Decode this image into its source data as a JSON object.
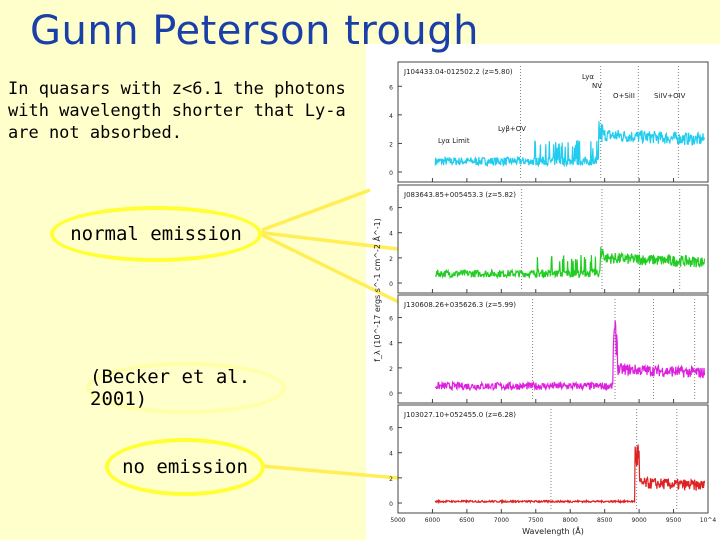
{
  "slide": {
    "title": "Gunn Peterson trough",
    "intro_lines": [
      "In quasars with z<6.1 the photons",
      "with wavelength shorter that Ly-a",
      "are not absorbed."
    ],
    "label_normal": "normal emission",
    "label_citation": "(Becker et al. 2001)",
    "label_none": "no emission"
  },
  "chart_data": {
    "type": "line",
    "xlabel": "Wavelength (Å)",
    "ylabel": "f_λ (10^-17 ergs s^-1 cm^-2 Å^-1)",
    "x_ticks": [
      "5000",
      "6000",
      "6500",
      "7000",
      "7500",
      "8000",
      "8500",
      "9000",
      "9500",
      "10^4"
    ],
    "xlim": [
      5000,
      10000
    ],
    "lines": {
      "ly_limit": "Lyα Limit",
      "ly_beta": "Lyβ+OV",
      "ly_alpha": "Lyα",
      "nv": "NV",
      "o_si": "O+SiII",
      "siiv": "SiIV+OIV"
    },
    "panels": [
      {
        "name": "J104433.04-012502.2 (z=5.80)",
        "color": "#22ccee",
        "y_ticks": [
          "0",
          "2",
          "4",
          "6"
        ],
        "lya_obs": 8270
      },
      {
        "name": "J083643.85+005453.3 (z=5.82)",
        "color": "#22cc22",
        "y_ticks": [
          "0",
          "2",
          "4",
          "6"
        ],
        "lya_obs": 8290
      },
      {
        "name": "J130608.26+035626.3 (z=5.99)",
        "color": "#dd22dd",
        "y_ticks": [
          "0",
          "2",
          "4",
          "6"
        ],
        "lya_obs": 8500
      },
      {
        "name": "J103027.10+052455.0 (z=6.28)",
        "color": "#dd2222",
        "y_ticks": [
          "0",
          "2",
          "4",
          "6"
        ],
        "lya_obs": 8850
      }
    ]
  }
}
